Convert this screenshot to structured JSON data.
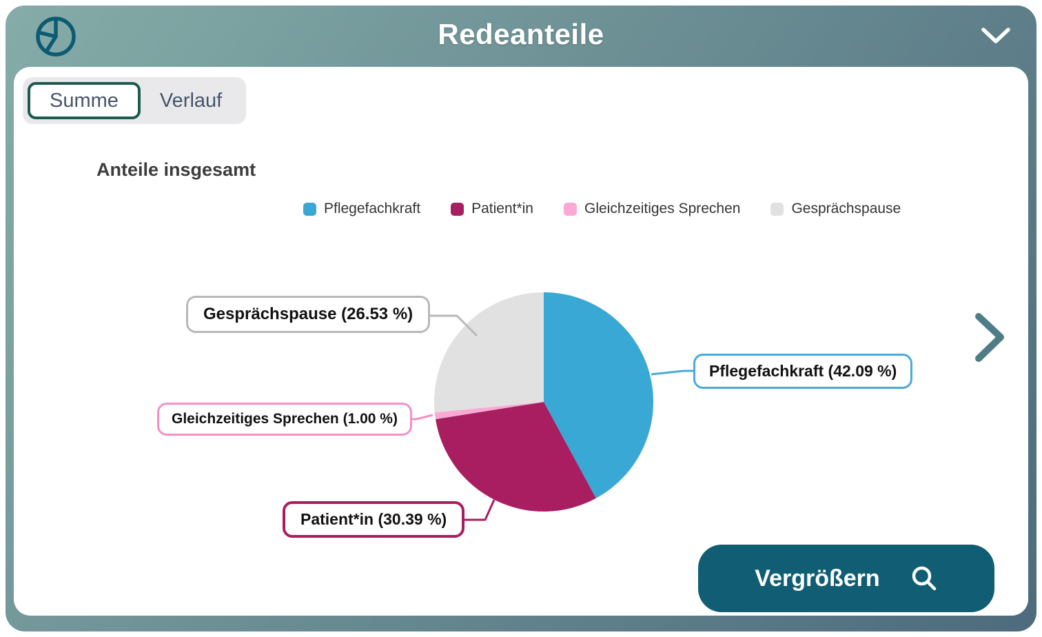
{
  "header": {
    "title": "Redeanteile"
  },
  "tabs": [
    {
      "label": "Summe",
      "selected": true
    },
    {
      "label": "Verlauf",
      "selected": false
    }
  ],
  "section": {
    "title": "Anteile insgesamt"
  },
  "legend": [
    {
      "label": "Pflegefachkraft",
      "color": "#3aa8d5"
    },
    {
      "label": "Patient*in",
      "color": "#a81e61"
    },
    {
      "label": "Gleichzeitiges Sprechen",
      "color": "#f9a9d3"
    },
    {
      "label": "Gesprächspause",
      "color": "#e1e1e1"
    }
  ],
  "chart_data": {
    "type": "pie",
    "title": "Anteile insgesamt",
    "start_angle_deg": 0,
    "direction": "clockwise",
    "legend_position": "top",
    "segments": [
      {
        "label": "Pflegefachkraft",
        "value": 42.09,
        "color": "#3aa8d5",
        "border_color": "#4aa9dd",
        "callout": "Pflegefachkraft (42.09 %)"
      },
      {
        "label": "Patient*in",
        "value": 30.39,
        "color": "#a81e61",
        "border_color": "#a81e61",
        "callout": "Patient*in (30.39 %)"
      },
      {
        "label": "Gleichzeitiges Sprechen",
        "value": 1.0,
        "color": "#f9a9d3",
        "border_color": "#f58fc7",
        "callout": "Gleichzeitiges Sprechen (1.00 %)"
      },
      {
        "label": "Gesprächspause",
        "value": 26.53,
        "color": "#e1e1e1",
        "border_color": "#b8b8b8",
        "callout": "Gesprächspause (26.53 %)"
      }
    ]
  },
  "expand_button": {
    "label": "Vergrößern"
  },
  "colors": {
    "frame-start": "#85aca8",
    "frame-end": "#4d6b7c",
    "card-bg": "#ffffff",
    "header-icon": "#0d5a73",
    "title-text": "#ffffff",
    "tab-group-bg": "#e9e9ec",
    "tab-border": "#1d5b50",
    "tab-text": "#475569",
    "section-title-text": "#3d3d3d",
    "legend-text": "#333333",
    "callout-text": "#111111",
    "next-chevron": "#4e7d87",
    "button-bg": "#115e74",
    "button-text": "#ffffff"
  }
}
